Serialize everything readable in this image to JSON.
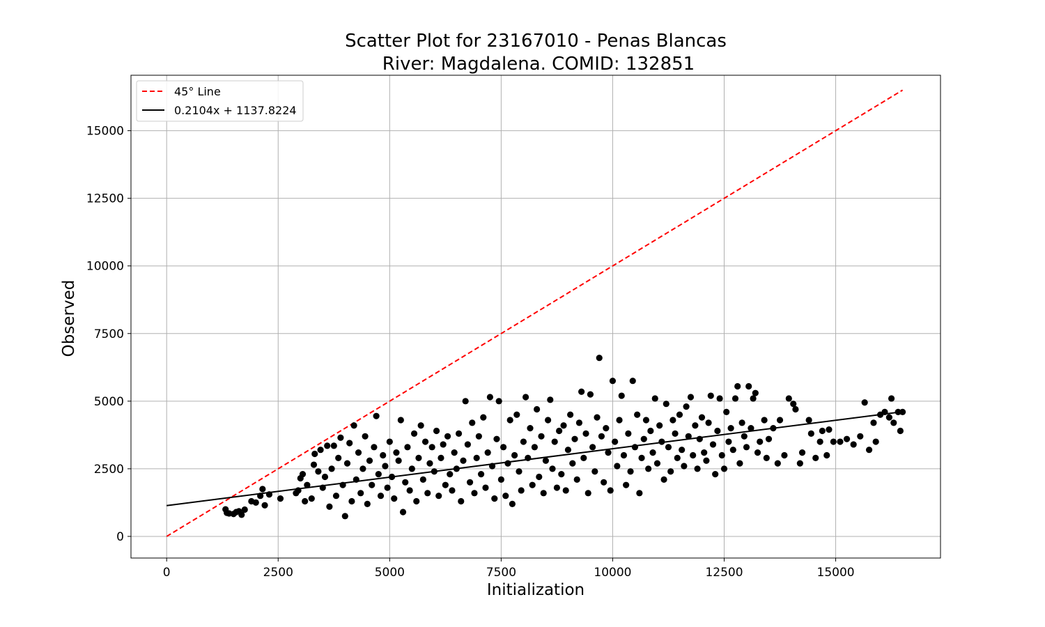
{
  "chart_data": {
    "type": "scatter",
    "title": "Scatter Plot for 23167010 - Penas Blancas",
    "subtitle": "River: Magdalena. COMID: 132851",
    "xlabel": "Initialization",
    "ylabel": "Observed",
    "xlim": [
      -800,
      17350
    ],
    "ylim": [
      -800,
      17050
    ],
    "xticks": [
      0,
      2500,
      5000,
      7500,
      10000,
      12500,
      15000
    ],
    "yticks": [
      0,
      2500,
      5000,
      7500,
      10000,
      12500,
      15000
    ],
    "grid": true,
    "legend_position": "top-left",
    "series": [
      {
        "name": "45° Line",
        "kind": "line",
        "style": "dashed",
        "color": "#ff0000",
        "x": [
          0,
          16500
        ],
        "y": [
          0,
          16500
        ]
      },
      {
        "name": "0.2104x + 1137.8224",
        "kind": "line",
        "style": "solid",
        "color": "#000000",
        "slope": 0.2104,
        "intercept": 1137.8224,
        "x": [
          0,
          16500
        ]
      },
      {
        "kind": "scatter",
        "color": "#000000",
        "points": [
          [
            1320,
            1000
          ],
          [
            1350,
            870
          ],
          [
            1400,
            850
          ],
          [
            1500,
            830
          ],
          [
            1560,
            900
          ],
          [
            1620,
            930
          ],
          [
            1680,
            800
          ],
          [
            1750,
            990
          ],
          [
            1900,
            1300
          ],
          [
            2000,
            1250
          ],
          [
            2100,
            1500
          ],
          [
            2150,
            1750
          ],
          [
            2200,
            1150
          ],
          [
            2300,
            1550
          ],
          [
            2550,
            1400
          ],
          [
            2900,
            1600
          ],
          [
            2950,
            1700
          ],
          [
            3000,
            2150
          ],
          [
            3050,
            2300
          ],
          [
            3100,
            1300
          ],
          [
            3150,
            1900
          ],
          [
            3250,
            1400
          ],
          [
            3300,
            2650
          ],
          [
            3320,
            3050
          ],
          [
            3400,
            2400
          ],
          [
            3450,
            3200
          ],
          [
            3500,
            1800
          ],
          [
            3550,
            2200
          ],
          [
            3600,
            3350
          ],
          [
            3650,
            1100
          ],
          [
            3700,
            2500
          ],
          [
            3750,
            3350
          ],
          [
            3800,
            1500
          ],
          [
            3850,
            2900
          ],
          [
            3900,
            3650
          ],
          [
            3950,
            1900
          ],
          [
            4000,
            750
          ],
          [
            4050,
            2700
          ],
          [
            4100,
            3450
          ],
          [
            4150,
            1300
          ],
          [
            4200,
            4100
          ],
          [
            4250,
            2100
          ],
          [
            4300,
            3100
          ],
          [
            4350,
            1600
          ],
          [
            4400,
            2500
          ],
          [
            4450,
            3700
          ],
          [
            4500,
            1200
          ],
          [
            4550,
            2800
          ],
          [
            4600,
            1900
          ],
          [
            4650,
            3300
          ],
          [
            4700,
            4450
          ],
          [
            4750,
            2300
          ],
          [
            4800,
            1500
          ],
          [
            4850,
            3000
          ],
          [
            4900,
            2600
          ],
          [
            4950,
            1800
          ],
          [
            5000,
            3500
          ],
          [
            5050,
            2200
          ],
          [
            5100,
            1400
          ],
          [
            5150,
            3100
          ],
          [
            5200,
            2800
          ],
          [
            5250,
            4300
          ],
          [
            5300,
            900
          ],
          [
            5350,
            2000
          ],
          [
            5400,
            3300
          ],
          [
            5450,
            1700
          ],
          [
            5500,
            2500
          ],
          [
            5550,
            3800
          ],
          [
            5600,
            1300
          ],
          [
            5650,
            2900
          ],
          [
            5700,
            4100
          ],
          [
            5750,
            2100
          ],
          [
            5800,
            3500
          ],
          [
            5850,
            1600
          ],
          [
            5900,
            2700
          ],
          [
            5950,
            3300
          ],
          [
            6000,
            2400
          ],
          [
            6050,
            3900
          ],
          [
            6100,
            1500
          ],
          [
            6150,
            2900
          ],
          [
            6200,
            3400
          ],
          [
            6250,
            1900
          ],
          [
            6300,
            3700
          ],
          [
            6350,
            2300
          ],
          [
            6400,
            1700
          ],
          [
            6450,
            3100
          ],
          [
            6500,
            2500
          ],
          [
            6550,
            3800
          ],
          [
            6600,
            1300
          ],
          [
            6650,
            2800
          ],
          [
            6700,
            5000
          ],
          [
            6750,
            3400
          ],
          [
            6800,
            2000
          ],
          [
            6850,
            4200
          ],
          [
            6900,
            1600
          ],
          [
            6950,
            2900
          ],
          [
            7000,
            3700
          ],
          [
            7050,
            2300
          ],
          [
            7100,
            4400
          ],
          [
            7150,
            1800
          ],
          [
            7200,
            3100
          ],
          [
            7250,
            5150
          ],
          [
            7300,
            2600
          ],
          [
            7350,
            1400
          ],
          [
            7400,
            3600
          ],
          [
            7450,
            5000
          ],
          [
            7500,
            2100
          ],
          [
            7550,
            3300
          ],
          [
            7600,
            1500
          ],
          [
            7650,
            2700
          ],
          [
            7700,
            4300
          ],
          [
            7750,
            1200
          ],
          [
            7800,
            3000
          ],
          [
            7850,
            4500
          ],
          [
            7900,
            2400
          ],
          [
            7950,
            1700
          ],
          [
            8000,
            3500
          ],
          [
            8050,
            5150
          ],
          [
            8100,
            2900
          ],
          [
            8150,
            4000
          ],
          [
            8200,
            1900
          ],
          [
            8250,
            3300
          ],
          [
            8300,
            4700
          ],
          [
            8350,
            2200
          ],
          [
            8400,
            3700
          ],
          [
            8450,
            1600
          ],
          [
            8500,
            2800
          ],
          [
            8550,
            4300
          ],
          [
            8600,
            5050
          ],
          [
            8650,
            2500
          ],
          [
            8700,
            3500
          ],
          [
            8750,
            1800
          ],
          [
            8800,
            3900
          ],
          [
            8850,
            2300
          ],
          [
            8900,
            4100
          ],
          [
            8950,
            1700
          ],
          [
            9000,
            3200
          ],
          [
            9050,
            4500
          ],
          [
            9100,
            2700
          ],
          [
            9150,
            3600
          ],
          [
            9200,
            2100
          ],
          [
            9250,
            4200
          ],
          [
            9300,
            5350
          ],
          [
            9350,
            2900
          ],
          [
            9400,
            3800
          ],
          [
            9450,
            1600
          ],
          [
            9500,
            5250
          ],
          [
            9550,
            3300
          ],
          [
            9600,
            2400
          ],
          [
            9650,
            4400
          ],
          [
            9700,
            6600
          ],
          [
            9750,
            3700
          ],
          [
            9800,
            2000
          ],
          [
            9850,
            4000
          ],
          [
            9900,
            3100
          ],
          [
            9950,
            1700
          ],
          [
            10000,
            5750
          ],
          [
            10050,
            3500
          ],
          [
            10100,
            2600
          ],
          [
            10150,
            4300
          ],
          [
            10200,
            5200
          ],
          [
            10250,
            3000
          ],
          [
            10300,
            1900
          ],
          [
            10350,
            3800
          ],
          [
            10400,
            2400
          ],
          [
            10450,
            5750
          ],
          [
            10500,
            3300
          ],
          [
            10550,
            4500
          ],
          [
            10600,
            1600
          ],
          [
            10650,
            2900
          ],
          [
            10700,
            3600
          ],
          [
            10750,
            4300
          ],
          [
            10800,
            2500
          ],
          [
            10850,
            3900
          ],
          [
            10900,
            3100
          ],
          [
            10950,
            5100
          ],
          [
            11000,
            2700
          ],
          [
            11050,
            4100
          ],
          [
            11100,
            3500
          ],
          [
            11150,
            2100
          ],
          [
            11200,
            4900
          ],
          [
            11250,
            3300
          ],
          [
            11300,
            2400
          ],
          [
            11350,
            4300
          ],
          [
            11400,
            3800
          ],
          [
            11450,
            2900
          ],
          [
            11500,
            4500
          ],
          [
            11550,
            3200
          ],
          [
            11600,
            2600
          ],
          [
            11650,
            4800
          ],
          [
            11700,
            3700
          ],
          [
            11750,
            5150
          ],
          [
            11800,
            3000
          ],
          [
            11850,
            4100
          ],
          [
            11900,
            2500
          ],
          [
            11950,
            3600
          ],
          [
            12000,
            4400
          ],
          [
            12050,
            3100
          ],
          [
            12100,
            2800
          ],
          [
            12150,
            4200
          ],
          [
            12200,
            5200
          ],
          [
            12250,
            3400
          ],
          [
            12300,
            2300
          ],
          [
            12350,
            3900
          ],
          [
            12400,
            5100
          ],
          [
            12450,
            3000
          ],
          [
            12500,
            2500
          ],
          [
            12550,
            4600
          ],
          [
            12600,
            3500
          ],
          [
            12650,
            4000
          ],
          [
            12700,
            3200
          ],
          [
            12750,
            5100
          ],
          [
            12800,
            5550
          ],
          [
            12850,
            2700
          ],
          [
            12900,
            4200
          ],
          [
            12950,
            3700
          ],
          [
            13000,
            3300
          ],
          [
            13050,
            5550
          ],
          [
            13100,
            4000
          ],
          [
            13150,
            5100
          ],
          [
            13200,
            5300
          ],
          [
            13250,
            3100
          ],
          [
            13300,
            3500
          ],
          [
            13400,
            4300
          ],
          [
            13450,
            2900
          ],
          [
            13500,
            3600
          ],
          [
            13600,
            4000
          ],
          [
            13700,
            2700
          ],
          [
            13750,
            4300
          ],
          [
            13850,
            3000
          ],
          [
            13950,
            5100
          ],
          [
            14050,
            4900
          ],
          [
            14100,
            4700
          ],
          [
            14200,
            2700
          ],
          [
            14250,
            3100
          ],
          [
            14400,
            4300
          ],
          [
            14450,
            3800
          ],
          [
            14550,
            2900
          ],
          [
            14650,
            3500
          ],
          [
            14700,
            3900
          ],
          [
            14800,
            3000
          ],
          [
            14850,
            3950
          ],
          [
            14950,
            3500
          ],
          [
            15100,
            3500
          ],
          [
            15250,
            3600
          ],
          [
            15400,
            3400
          ],
          [
            15550,
            3700
          ],
          [
            15650,
            4950
          ],
          [
            15750,
            3200
          ],
          [
            15850,
            4200
          ],
          [
            15900,
            3500
          ],
          [
            16000,
            4500
          ],
          [
            16100,
            4600
          ],
          [
            16200,
            4400
          ],
          [
            16250,
            5100
          ],
          [
            16300,
            4200
          ],
          [
            16400,
            4600
          ],
          [
            16450,
            3900
          ],
          [
            16500,
            4600
          ]
        ]
      }
    ]
  }
}
